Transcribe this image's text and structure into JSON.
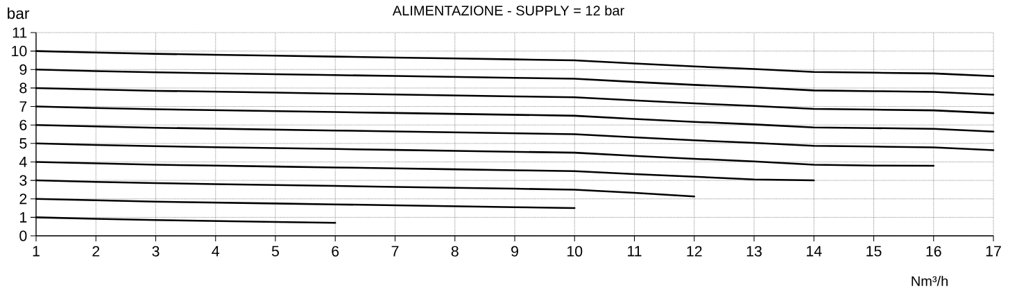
{
  "chart_data": {
    "type": "line",
    "title": "ALIMENTAZIONE  - SUPPLY = 12 bar",
    "xlabel": "Nm³/h",
    "ylabel": "bar",
    "xlim": [
      1,
      17
    ],
    "xticks": [
      1,
      2,
      3,
      4,
      5,
      6,
      7,
      8,
      9,
      10,
      11,
      12,
      13,
      14,
      15,
      16,
      17
    ],
    "ylim": [
      0,
      11
    ],
    "yticks": [
      0,
      1,
      2,
      3,
      4,
      5,
      6,
      7,
      8,
      9,
      10,
      11
    ],
    "grid": true,
    "marker": "none",
    "line_style": "solid",
    "series": [
      {
        "color": "#000000",
        "x": [
          1,
          2,
          3,
          4,
          5,
          6
        ],
        "values": [
          1,
          0.92,
          0.85,
          0.8,
          0.75,
          0.7
        ]
      },
      {
        "color": "#000000",
        "x": [
          1,
          2,
          3,
          4,
          5,
          6,
          7,
          8,
          9,
          10
        ],
        "values": [
          2,
          1.92,
          1.85,
          1.8,
          1.75,
          1.7,
          1.65,
          1.6,
          1.55,
          1.5
        ]
      },
      {
        "color": "#000000",
        "x": [
          1,
          2,
          3,
          4,
          5,
          6,
          7,
          8,
          9,
          10,
          11,
          12
        ],
        "values": [
          3,
          2.92,
          2.85,
          2.8,
          2.75,
          2.7,
          2.65,
          2.6,
          2.55,
          2.5,
          2.33,
          2.13
        ]
      },
      {
        "color": "#000000",
        "x": [
          1,
          2,
          3,
          4,
          5,
          6,
          7,
          8,
          9,
          10,
          11,
          12,
          13,
          14
        ],
        "values": [
          4,
          3.92,
          3.85,
          3.8,
          3.75,
          3.7,
          3.65,
          3.6,
          3.55,
          3.5,
          3.34,
          3.2,
          3.05,
          3.0
        ]
      },
      {
        "color": "#000000",
        "x": [
          1,
          2,
          3,
          4,
          5,
          6,
          7,
          8,
          9,
          10,
          11,
          12,
          13,
          14,
          15,
          16
        ],
        "values": [
          5,
          4.92,
          4.85,
          4.8,
          4.75,
          4.7,
          4.65,
          4.6,
          4.55,
          4.5,
          4.33,
          4.17,
          4.03,
          3.85,
          3.8,
          3.79
        ]
      },
      {
        "color": "#000000",
        "x": [
          1,
          2,
          3,
          4,
          5,
          6,
          7,
          8,
          9,
          10,
          11,
          12,
          13,
          14,
          15,
          16,
          17
        ],
        "values": [
          6,
          5.92,
          5.85,
          5.8,
          5.75,
          5.7,
          5.65,
          5.6,
          5.55,
          5.5,
          5.33,
          5.17,
          5.03,
          4.87,
          4.83,
          4.79,
          4.64
        ]
      },
      {
        "color": "#000000",
        "x": [
          1,
          2,
          3,
          4,
          5,
          6,
          7,
          8,
          9,
          10,
          11,
          12,
          13,
          14,
          15,
          16,
          17
        ],
        "values": [
          7,
          6.92,
          6.85,
          6.8,
          6.75,
          6.7,
          6.65,
          6.6,
          6.55,
          6.5,
          6.33,
          6.17,
          6.03,
          5.87,
          5.83,
          5.79,
          5.64
        ]
      },
      {
        "color": "#000000",
        "x": [
          1,
          2,
          3,
          4,
          5,
          6,
          7,
          8,
          9,
          10,
          11,
          12,
          13,
          14,
          15,
          16,
          17
        ],
        "values": [
          8,
          7.92,
          7.85,
          7.8,
          7.75,
          7.7,
          7.65,
          7.6,
          7.55,
          7.5,
          7.33,
          7.17,
          7.03,
          6.87,
          6.83,
          6.79,
          6.64
        ]
      },
      {
        "color": "#000000",
        "x": [
          1,
          2,
          3,
          4,
          5,
          6,
          7,
          8,
          9,
          10,
          11,
          12,
          13,
          14,
          15,
          16,
          17
        ],
        "values": [
          9,
          8.92,
          8.85,
          8.8,
          8.75,
          8.7,
          8.65,
          8.6,
          8.55,
          8.5,
          8.33,
          8.17,
          8.03,
          7.87,
          7.83,
          7.79,
          7.64
        ]
      },
      {
        "color": "#000000",
        "x": [
          1,
          2,
          3,
          4,
          5,
          6,
          7,
          8,
          9,
          10,
          11,
          12,
          13,
          14,
          15,
          16,
          17
        ],
        "values": [
          10,
          9.92,
          9.85,
          9.8,
          9.75,
          9.7,
          9.65,
          9.6,
          9.55,
          9.5,
          9.33,
          9.17,
          9.03,
          8.87,
          8.83,
          8.79,
          8.64
        ]
      }
    ]
  }
}
